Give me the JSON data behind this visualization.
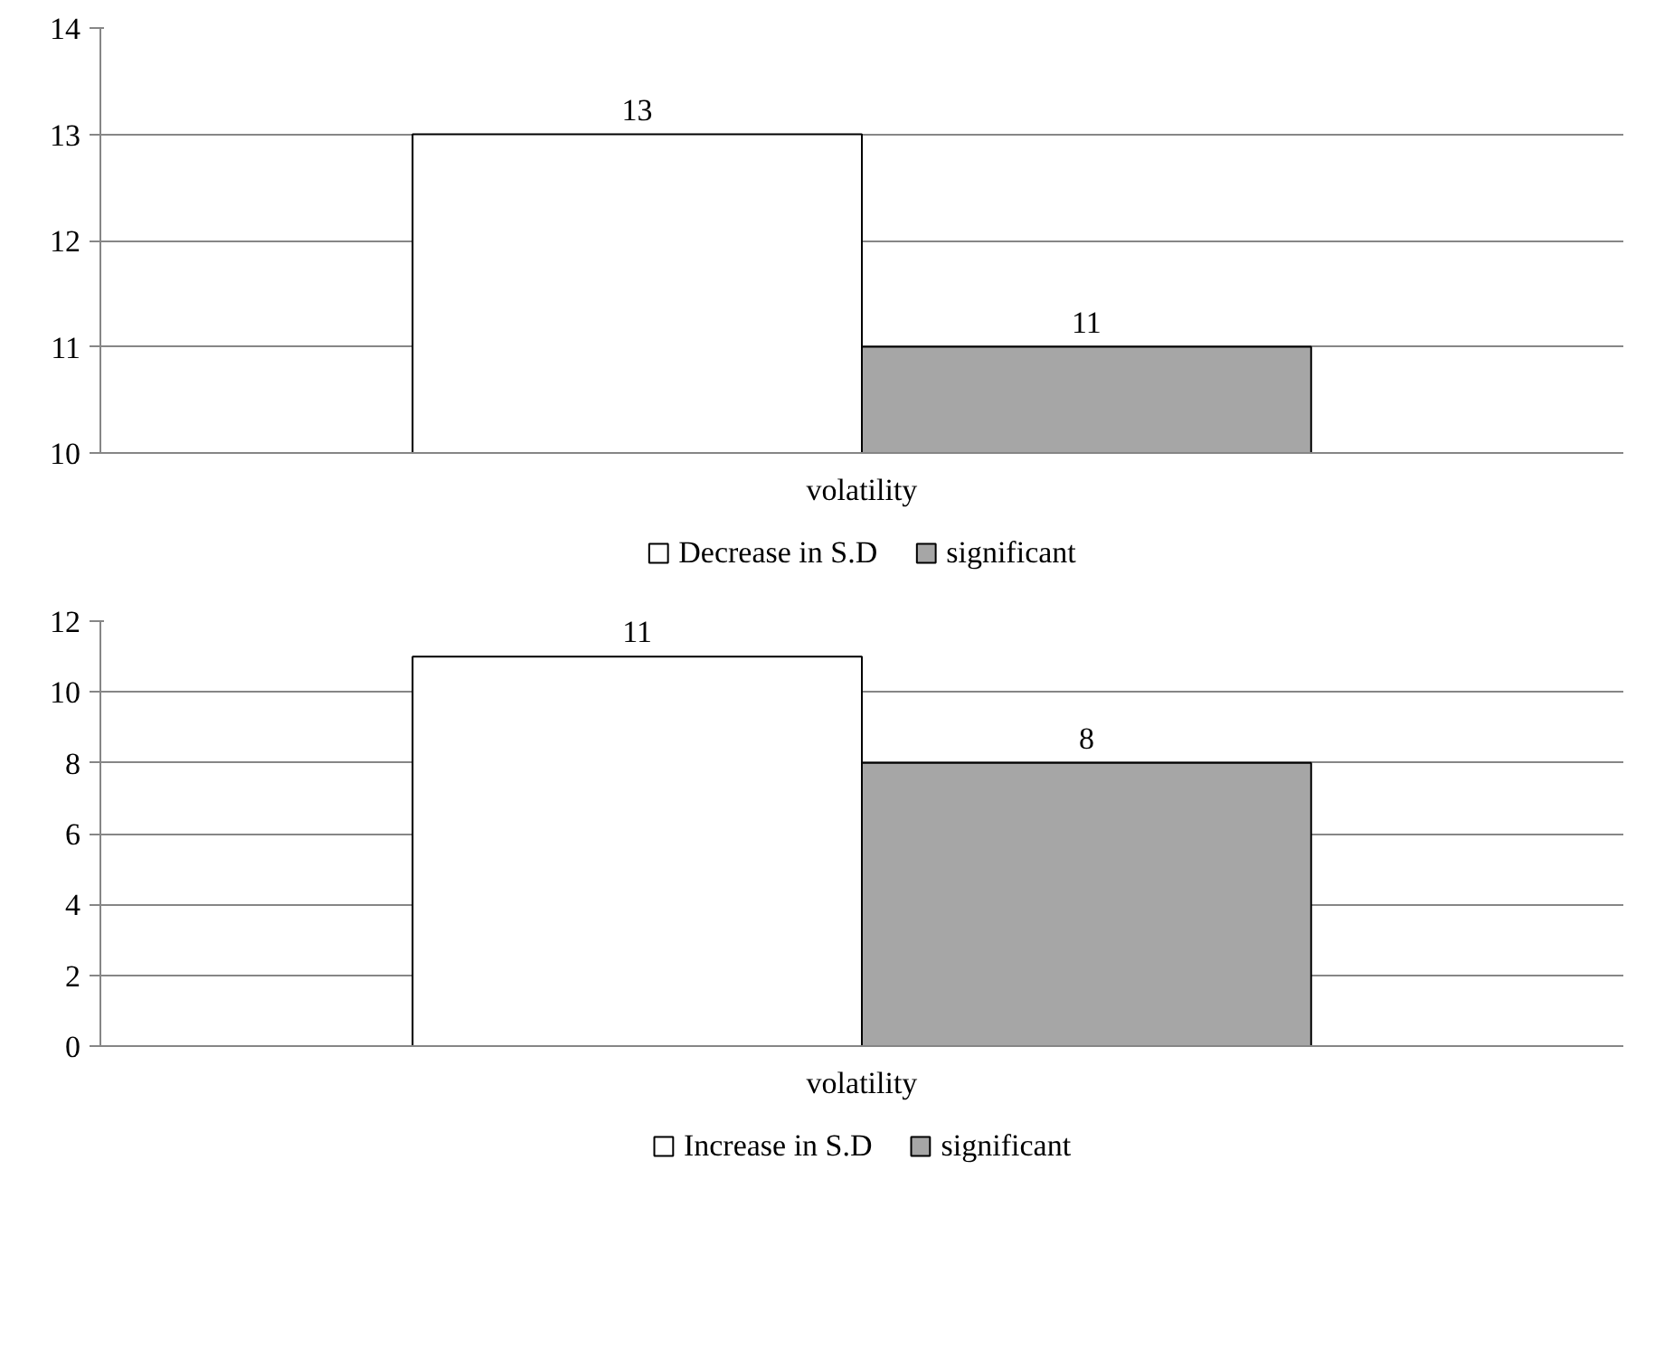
{
  "chart_data": [
    {
      "type": "bar",
      "categories": [
        "volatility"
      ],
      "ylim": [
        10,
        14
      ],
      "yticks": [
        10,
        11,
        12,
        13,
        14
      ],
      "grid": "y",
      "legend": "bottom",
      "data_labels": true,
      "series": [
        {
          "name": "Decrease in S.D",
          "color": "#ffffff",
          "values": [
            13
          ]
        },
        {
          "name": "significant",
          "color": "#a6a6a6",
          "values": [
            11
          ]
        }
      ]
    },
    {
      "type": "bar",
      "categories": [
        "volatility"
      ],
      "ylim": [
        0,
        12
      ],
      "yticks": [
        0,
        2,
        4,
        6,
        8,
        10,
        12
      ],
      "grid": "y",
      "legend": "bottom",
      "data_labels": true,
      "series": [
        {
          "name": "Increase in S.D",
          "color": "#ffffff",
          "values": [
            11
          ]
        },
        {
          "name": "significant",
          "color": "#a6a6a6",
          "values": [
            8
          ]
        }
      ]
    }
  ]
}
